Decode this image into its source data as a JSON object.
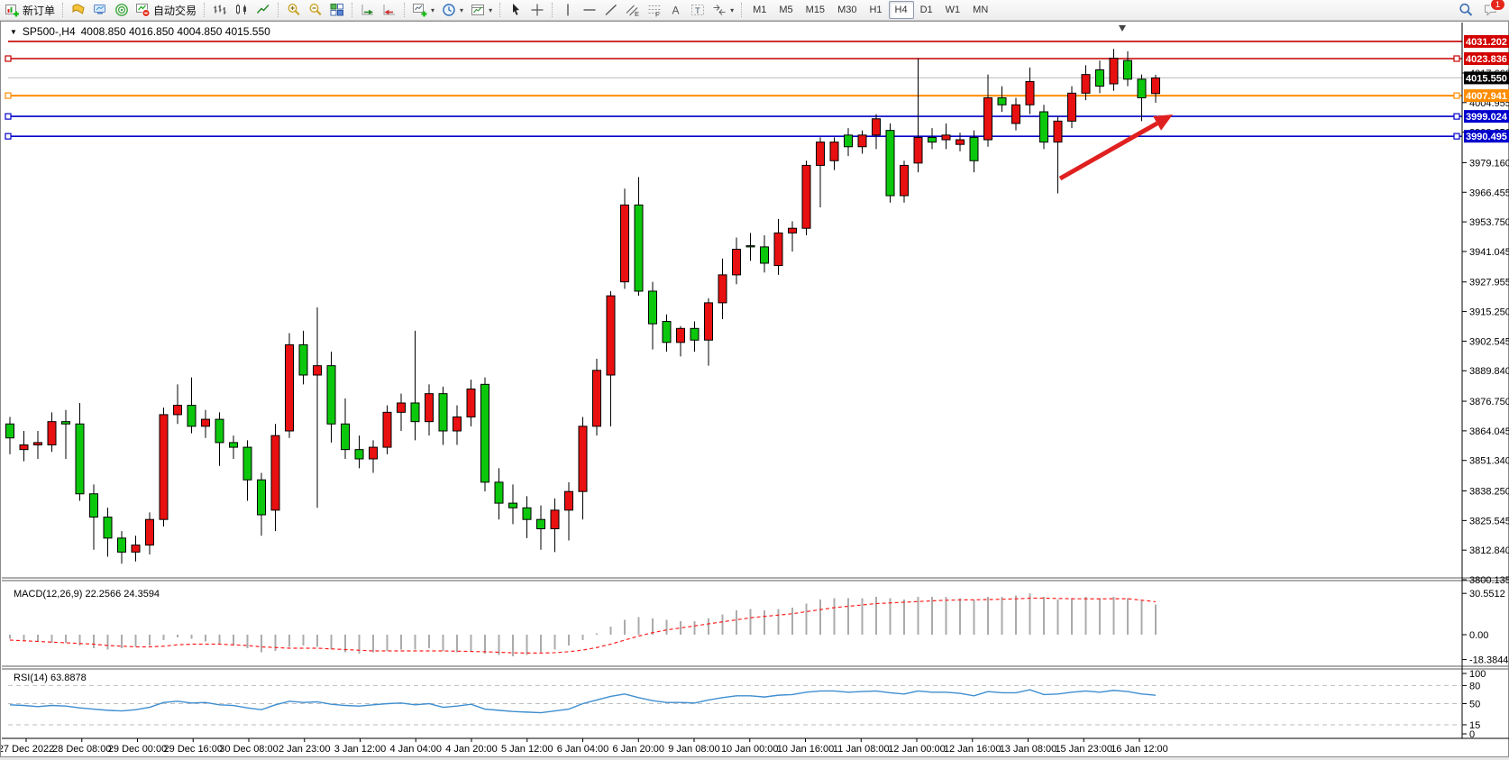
{
  "toolbar": {
    "groups": [
      [
        {
          "name": "new-order",
          "icon": "new-order",
          "label": "新订单"
        }
      ],
      [
        {
          "name": "history-center",
          "icon": "book"
        },
        {
          "name": "publish",
          "icon": "monitor"
        },
        {
          "name": "signals",
          "icon": "radar"
        },
        {
          "name": "autotrading",
          "icon": "autotrade",
          "label": "自动交易"
        }
      ],
      [
        {
          "name": "bar-chart",
          "icon": "bars"
        },
        {
          "name": "candle-chart",
          "icon": "candles"
        },
        {
          "name": "line-chart",
          "icon": "linechart"
        }
      ],
      [
        {
          "name": "zoom-in",
          "icon": "zoom-in"
        },
        {
          "name": "zoom-out",
          "icon": "zoom-out"
        },
        {
          "name": "tile-windows",
          "icon": "tile"
        }
      ],
      [
        {
          "name": "autoscroll",
          "icon": "autoscroll"
        },
        {
          "name": "chart-shift",
          "icon": "shift"
        }
      ],
      [
        {
          "name": "new-chart",
          "icon": "add-chart",
          "caret": true
        },
        {
          "name": "periods",
          "icon": "clock",
          "caret": true
        },
        {
          "name": "templates",
          "icon": "template",
          "caret": true
        }
      ],
      [
        {
          "name": "cursor",
          "icon": "cursor"
        },
        {
          "name": "crosshair",
          "icon": "crosshair"
        }
      ],
      [
        {
          "name": "vertical-line",
          "icon": "vline"
        },
        {
          "name": "horizontal-line",
          "icon": "hline"
        },
        {
          "name": "trendline",
          "icon": "trendline"
        },
        {
          "name": "equidistant-channel",
          "icon": "channel"
        },
        {
          "name": "fibonacci",
          "icon": "fibo"
        },
        {
          "name": "text",
          "icon": "textA"
        },
        {
          "name": "text-label",
          "icon": "textlabel"
        },
        {
          "name": "arrows",
          "icon": "shapes",
          "caret": true
        }
      ]
    ],
    "timeframes": {
      "items": [
        "M1",
        "M5",
        "M15",
        "M30",
        "H1",
        "H4",
        "D1",
        "W1",
        "MN"
      ],
      "active": "H4"
    },
    "right": [
      {
        "name": "search",
        "icon": "search"
      },
      {
        "name": "notifications",
        "icon": "chat",
        "badge": "1"
      }
    ]
  },
  "chart": {
    "dropdown_glyph": "▼",
    "symbol_title": "SP500-,H4",
    "ohlc": "4008.850 4016.850 4004.850 4015.550"
  },
  "panes": {
    "macd_label": "MACD(12,26,9) 22.2566 24.3594",
    "rsi_label": "RSI(14) 63.8878"
  },
  "chart_data": {
    "type": "candlestick",
    "symbol": "SP500-",
    "period": "H4",
    "last_ohlc": {
      "open": 4008.85,
      "high": 4016.85,
      "low": 4004.85,
      "close": 4015.55
    },
    "up_color": "#e81010",
    "down_color": "#0cc80c",
    "candles": [
      [
        3867,
        3870,
        3854,
        3861
      ],
      [
        3856,
        3864,
        3851,
        3858
      ],
      [
        3858,
        3864,
        3852,
        3859
      ],
      [
        3858,
        3872,
        3855,
        3868
      ],
      [
        3868,
        3873,
        3852,
        3867
      ],
      [
        3867,
        3876,
        3834,
        3837
      ],
      [
        3837,
        3841,
        3813,
        3827
      ],
      [
        3827,
        3831,
        3810,
        3818
      ],
      [
        3818,
        3821,
        3807,
        3812
      ],
      [
        3812,
        3819,
        3808,
        3815
      ],
      [
        3815,
        3829,
        3811,
        3826
      ],
      [
        3826,
        3874,
        3823,
        3871
      ],
      [
        3871,
        3884,
        3867,
        3875
      ],
      [
        3875,
        3887,
        3863,
        3866
      ],
      [
        3866,
        3873,
        3861,
        3869
      ],
      [
        3869,
        3872,
        3849,
        3859
      ],
      [
        3859,
        3862,
        3852,
        3857
      ],
      [
        3857,
        3860,
        3834,
        3843
      ],
      [
        3843,
        3846,
        3819,
        3828
      ],
      [
        3830,
        3867,
        3821,
        3862
      ],
      [
        3864,
        3906,
        3861,
        3901
      ],
      [
        3901,
        3907,
        3884,
        3888
      ],
      [
        3888,
        3917,
        3831,
        3892
      ],
      [
        3892,
        3898,
        3859,
        3867
      ],
      [
        3867,
        3878,
        3852,
        3856
      ],
      [
        3856,
        3862,
        3848,
        3852
      ],
      [
        3852,
        3860,
        3846,
        3857
      ],
      [
        3857,
        3875,
        3854,
        3872
      ],
      [
        3872,
        3880,
        3864,
        3876
      ],
      [
        3876,
        3907,
        3860,
        3868
      ],
      [
        3868,
        3884,
        3862,
        3880
      ],
      [
        3880,
        3883,
        3858,
        3864
      ],
      [
        3864,
        3875,
        3858,
        3870
      ],
      [
        3870,
        3886,
        3866,
        3882
      ],
      [
        3884,
        3887,
        3838,
        3842
      ],
      [
        3842,
        3848,
        3826,
        3833
      ],
      [
        3833,
        3841,
        3824,
        3831
      ],
      [
        3831,
        3836,
        3818,
        3826
      ],
      [
        3826,
        3832,
        3813,
        3822
      ],
      [
        3822,
        3835,
        3812,
        3830
      ],
      [
        3830,
        3842,
        3817,
        3838
      ],
      [
        3838,
        3870,
        3826,
        3866
      ],
      [
        3866,
        3895,
        3862,
        3890
      ],
      [
        3888,
        3924,
        3866,
        3922
      ],
      [
        3928,
        3968,
        3925,
        3961
      ],
      [
        3961,
        3973,
        3922,
        3924
      ],
      [
        3924,
        3928,
        3899,
        3910
      ],
      [
        3911,
        3914,
        3898,
        3902
      ],
      [
        3902,
        3909,
        3896,
        3908
      ],
      [
        3908,
        3911,
        3898,
        3903
      ],
      [
        3903,
        3921,
        3892,
        3919
      ],
      [
        3919,
        3938,
        3912,
        3931
      ],
      [
        3931,
        3947,
        3927,
        3942
      ],
      [
        3943.5,
        3949,
        3937,
        3943
      ],
      [
        3943,
        3948,
        3932,
        3936
      ],
      [
        3935,
        3955,
        3931,
        3949
      ],
      [
        3949,
        3954,
        3941,
        3951
      ],
      [
        3951,
        3980,
        3948,
        3978
      ],
      [
        3978,
        3990,
        3960,
        3988
      ],
      [
        3980,
        3990,
        3976,
        3988
      ],
      [
        3991,
        3994,
        3982,
        3986
      ],
      [
        3986,
        3993,
        3983,
        3991
      ],
      [
        3991,
        4000,
        3985,
        3998
      ],
      [
        3993,
        3996,
        3962,
        3965
      ],
      [
        3965,
        3980,
        3962,
        3978
      ],
      [
        3979,
        4024,
        3975,
        3990
      ],
      [
        3990,
        3994,
        3985,
        3988
      ],
      [
        3989,
        3996,
        3985,
        3991
      ],
      [
        3987,
        3992,
        3984,
        3989
      ],
      [
        3990,
        3993,
        3975,
        3980
      ],
      [
        3989,
        4017,
        3986,
        4007
      ],
      [
        4007,
        4012,
        4001,
        4004
      ],
      [
        3996,
        4007,
        3993,
        4004
      ],
      [
        4004,
        4020,
        4000,
        4014
      ],
      [
        4001,
        4004,
        3985,
        3988
      ],
      [
        3988,
        3999,
        3966,
        3997
      ],
      [
        3997,
        4012,
        3994,
        4009
      ],
      [
        4009,
        4021,
        4006,
        4017
      ],
      [
        4019,
        4023,
        4009,
        4012
      ],
      [
        4013,
        4028,
        4010,
        4024
      ],
      [
        4023,
        4027,
        4012,
        4015
      ],
      [
        4015,
        4017,
        3997,
        4007
      ],
      [
        4008.85,
        4016.85,
        4004.85,
        4015.55
      ]
    ],
    "price_ticks": [
      "4017.660",
      "4004.955",
      "3992.250",
      "3979.160",
      "3966.455",
      "3953.750",
      "3941.045",
      "3927.955",
      "3915.250",
      "3902.545",
      "3889.840",
      "3876.750",
      "3864.045",
      "3851.340",
      "3838.250",
      "3825.545",
      "3812.840",
      "3800.135"
    ],
    "hlines": [
      {
        "price": 4031.202,
        "label": "4031.202",
        "color": "#c40000",
        "badge_bg": "#d40000",
        "handles": false
      },
      {
        "price": 4023.836,
        "label": "4023.836",
        "color": "#c40000",
        "badge_bg": "#d40000",
        "handles": true
      },
      {
        "price": 4007.941,
        "label": "4007.941",
        "color": "#ff8c00",
        "badge_bg": "#ff8c00",
        "handles": true
      },
      {
        "price": 3999.024,
        "label": "3999.024",
        "color": "#0000c8",
        "badge_bg": "#0000cd",
        "handles": true
      },
      {
        "price": 3990.495,
        "label": "3990.495",
        "color": "#0000c8",
        "badge_bg": "#0000cd",
        "handles": true
      }
    ],
    "current_price": {
      "price": 4015.55,
      "label": "4015.550",
      "line_color": "#c8c8c8",
      "badge_bg": "#000000"
    },
    "time_labels": [
      "27 Dec 2022",
      "28 Dec 08:00",
      "29 Dec 00:00",
      "29 Dec 16:00",
      "30 Dec 08:00",
      "2 Jan 23:00",
      "3 Jan 12:00",
      "4 Jan 04:00",
      "4 Jan 20:00",
      "5 Jan 12:00",
      "6 Jan 04:00",
      "6 Jan 20:00",
      "9 Jan 08:00",
      "10 Jan 00:00",
      "10 Jan 16:00",
      "11 Jan 08:00",
      "12 Jan 00:00",
      "12 Jan 16:00",
      "13 Jan 08:00",
      "15 Jan 23:00",
      "16 Jan 12:00"
    ],
    "macd": {
      "value": 22.2566,
      "signal_value": 24.3594,
      "scale": [
        "30.5512",
        "0.00",
        "-18.3844"
      ],
      "scale_values": [
        30.5512,
        0,
        -18.3844
      ],
      "hist_color": "#ababab",
      "signal_color": "#ff2020",
      "hist": [
        -3,
        -4,
        -5,
        -6,
        -6,
        -8,
        -10,
        -11,
        -10,
        -9,
        -8,
        -4,
        -2,
        -3,
        -5,
        -7,
        -8,
        -10,
        -13,
        -12,
        -9,
        -8,
        -9,
        -11,
        -13,
        -14,
        -13,
        -12,
        -11,
        -11,
        -10,
        -12,
        -13,
        -12,
        -14,
        -15,
        -16,
        -15,
        -13,
        -11,
        -8,
        -4,
        1,
        6,
        11,
        13,
        12,
        11,
        10,
        10,
        12,
        15,
        18,
        19,
        18,
        19,
        20,
        23,
        26,
        27,
        27,
        27,
        28,
        27,
        26,
        28,
        28,
        28,
        27,
        26,
        28,
        28,
        29,
        30.55,
        28,
        26,
        27,
        28,
        27,
        28,
        27,
        25,
        22.26
      ],
      "signal": [
        -4,
        -4.5,
        -5,
        -5.5,
        -6,
        -6.5,
        -7,
        -8,
        -8.5,
        -9,
        -9,
        -8.5,
        -7.5,
        -7,
        -7,
        -7,
        -7.5,
        -8,
        -9,
        -9.5,
        -10,
        -10,
        -10,
        -10.5,
        -11,
        -11.5,
        -12,
        -12,
        -12,
        -12,
        -12,
        -12,
        -12.2,
        -12.4,
        -12.6,
        -13,
        -13.4,
        -13.6,
        -13.6,
        -13.3,
        -12.6,
        -11.4,
        -9.5,
        -7,
        -4,
        -1,
        1.5,
        3.5,
        5,
        6.5,
        8,
        9.5,
        11,
        12.5,
        13.5,
        14.5,
        15.5,
        17,
        18.5,
        20,
        21,
        22,
        23,
        23.5,
        24,
        24.5,
        25,
        25.5,
        25.7,
        25.8,
        26,
        26.2,
        26.5,
        27,
        27,
        26.8,
        26.6,
        26.5,
        26.5,
        26.6,
        26.6,
        25.5,
        24.36
      ]
    },
    "rsi": {
      "value": 63.8878,
      "scale": [
        "100",
        "80",
        "50",
        "15",
        "0"
      ],
      "scale_values": [
        100,
        80,
        50,
        15,
        0
      ],
      "levels": [
        80,
        50,
        15
      ],
      "line_color": "#3e8ed0",
      "values": [
        48,
        47,
        45,
        47,
        46,
        43,
        41,
        39,
        38,
        40,
        44,
        52,
        54,
        51,
        52,
        48,
        47,
        43,
        40,
        48,
        54,
        52,
        53,
        49,
        47,
        46,
        48,
        50,
        51,
        48,
        50,
        44,
        46,
        49,
        41,
        39,
        37,
        36,
        35,
        38,
        41,
        50,
        56,
        62,
        66,
        60,
        55,
        52,
        52,
        51,
        56,
        60,
        63,
        63,
        61,
        64,
        65,
        69,
        71,
        71,
        69,
        70,
        71,
        68,
        66,
        71,
        69,
        69,
        67,
        63,
        70,
        68,
        68,
        73,
        65,
        66,
        69,
        71,
        69,
        72,
        70,
        66,
        63.89
      ],
      "ylim": [
        0,
        100
      ]
    },
    "arrow": {
      "from": [
        1175,
        197
      ],
      "to": [
        1300,
        126
      ],
      "color": "#e02020"
    },
    "ylim_main": [
      3800.135,
      4033.0
    ]
  }
}
